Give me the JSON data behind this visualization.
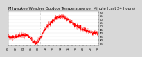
{
  "title": "Milwaukee Weather Outdoor Temperature per Minute (Last 24 Hours)",
  "bg_color": "#d8d8d8",
  "plot_bg_color": "#ffffff",
  "line_color": "#ff0000",
  "grid_color": "#aaaaaa",
  "vline_color": "#aaaaaa",
  "ylim": [
    22,
    72
  ],
  "ytick_values": [
    25,
    30,
    35,
    40,
    45,
    50,
    55,
    60,
    65,
    70
  ],
  "vline_positions": [
    6.5,
    8.5
  ],
  "num_points": 1440,
  "title_fontsize": 3.8,
  "tick_fontsize": 2.8,
  "noise_scale": 1.8
}
